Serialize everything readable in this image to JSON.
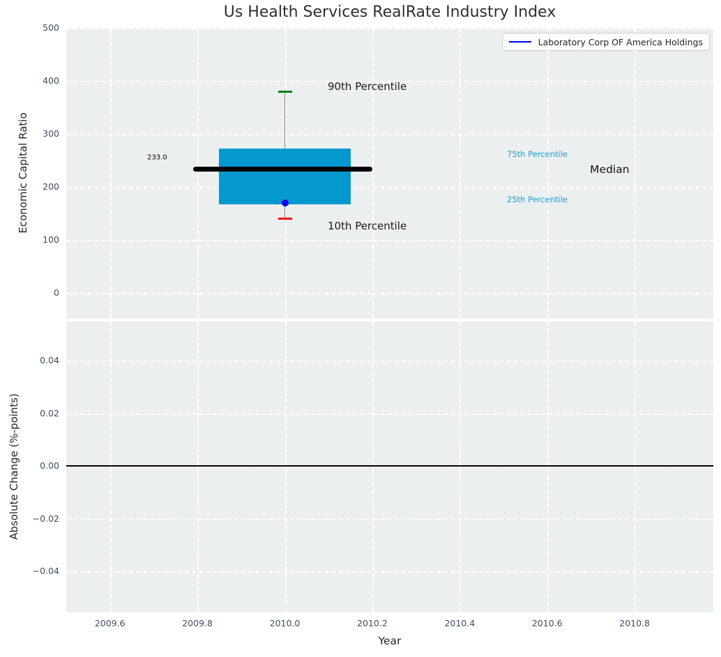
{
  "title": "Us Health Services RealRate Industry Index",
  "legend": {
    "label": "Laboratory Corp OF America Holdings",
    "line_color": "#0000ee"
  },
  "colors": {
    "plot_background": "#eceff0",
    "grid": "#ffffff",
    "tick_label": "#3d4c61",
    "axis_label": "#262626",
    "title": "#2f2f2f",
    "box_fill": "#0399ce",
    "median_line": "#000000",
    "whisker": "#848484",
    "p90_cap": "#008000",
    "p10_cap": "#ff0000",
    "company_point": "#0000ee",
    "percentile_label": "#1a9fd4",
    "zero_line": "#000000"
  },
  "chart_data": [
    {
      "type": "box",
      "ylabel": "Economic Capital Ratio",
      "xlim": [
        2009.5,
        2010.98
      ],
      "ylim": [
        -48.5,
        500
      ],
      "grid": "white-dashed",
      "show_xtick_labels": false,
      "yticks": [
        {
          "v": 0,
          "label": "0"
        },
        {
          "v": 100,
          "label": "100"
        },
        {
          "v": 200,
          "label": "200"
        },
        {
          "v": 300,
          "label": "300"
        },
        {
          "v": 400,
          "label": "400"
        },
        {
          "v": 500,
          "label": "500"
        }
      ],
      "xticks": [
        {
          "v": 2009.6,
          "label": "2009.6"
        },
        {
          "v": 2009.8,
          "label": "2009.8"
        },
        {
          "v": 2010.0,
          "label": "2010.0"
        },
        {
          "v": 2010.2,
          "label": "2010.2"
        },
        {
          "v": 2010.4,
          "label": "2010.4"
        },
        {
          "v": 2010.6,
          "label": "2010.6"
        },
        {
          "v": 2010.8,
          "label": "2010.8"
        }
      ],
      "box": {
        "x": 2010.0,
        "x_left": 2009.85,
        "x_right": 2010.15,
        "p10": 140,
        "q25": 167,
        "median": 233,
        "q75": 272,
        "p90": 380,
        "median_span": [
          2009.79,
          2010.2
        ]
      },
      "series": [
        {
          "name": "Laboratory Corp OF America Holdings",
          "x": [
            2010.0
          ],
          "y": [
            170
          ],
          "marker": "circle"
        }
      ],
      "annotations": [
        {
          "text": "233.0",
          "x": 2009.708,
          "y": 255,
          "size": 10,
          "color": "#000000",
          "align": "center"
        },
        {
          "text": "90th Percentile",
          "x": 2010.098,
          "y": 390,
          "size": 15,
          "color": "#1a1a1a",
          "align": "left"
        },
        {
          "text": "10th Percentile",
          "x": 2010.098,
          "y": 127,
          "size": 15,
          "color": "#1a1a1a",
          "align": "left"
        },
        {
          "text": "75th Percentile",
          "x": 2010.508,
          "y": 262,
          "size": 11.5,
          "color": "#1a9fd4",
          "align": "left"
        },
        {
          "text": "25th Percentile",
          "x": 2010.508,
          "y": 176,
          "size": 11.5,
          "color": "#1a9fd4",
          "align": "left"
        },
        {
          "text": "Median",
          "x": 2010.698,
          "y": 233,
          "size": 15.5,
          "color": "#111111",
          "align": "left"
        }
      ],
      "legend_entries": [
        "Laboratory Corp OF America Holdings"
      ],
      "legend_position": "upper right"
    },
    {
      "type": "line",
      "ylabel": "Absolute Change (%-points)",
      "xlabel": "Year",
      "xlim": [
        2009.5,
        2010.98
      ],
      "ylim": [
        -0.0555,
        0.0549
      ],
      "grid": "white-dashed",
      "show_xtick_labels": true,
      "zero_line": 0.0,
      "yticks": [
        {
          "v": -0.04,
          "label": "−0.04"
        },
        {
          "v": -0.02,
          "label": "−0.02"
        },
        {
          "v": 0,
          "label": "0.00"
        },
        {
          "v": 0.02,
          "label": "0.02"
        },
        {
          "v": 0.04,
          "label": "0.04"
        }
      ],
      "xticks": [
        {
          "v": 2009.6,
          "label": "2009.6"
        },
        {
          "v": 2009.8,
          "label": "2009.8"
        },
        {
          "v": 2010.0,
          "label": "2010.0"
        },
        {
          "v": 2010.2,
          "label": "2010.2"
        },
        {
          "v": 2010.4,
          "label": "2010.4"
        },
        {
          "v": 2010.6,
          "label": "2010.6"
        },
        {
          "v": 2010.8,
          "label": "2010.8"
        }
      ],
      "series": []
    }
  ]
}
